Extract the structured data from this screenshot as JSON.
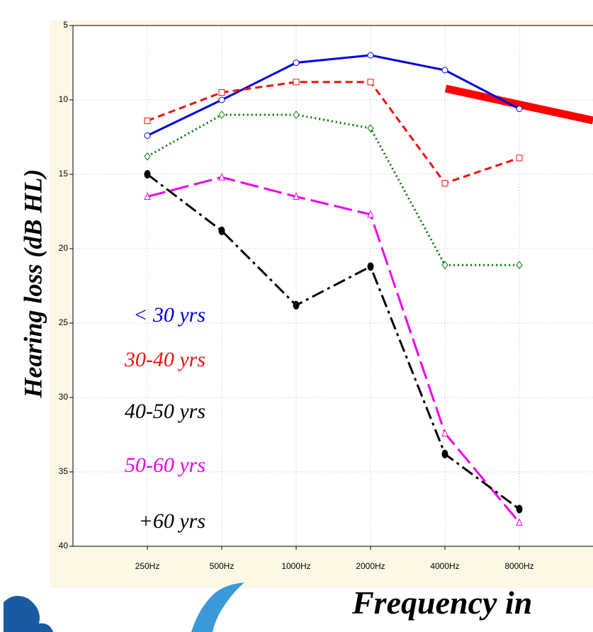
{
  "chart_data": {
    "type": "line",
    "y_axis_label": "Hearing loss (dB HL)",
    "x_axis_label": "Frequency in",
    "categories": [
      "250Hz",
      "500Hz",
      "1000Hz",
      "2000Hz",
      "4000Hz",
      "8000Hz"
    ],
    "ylim": [
      5,
      40
    ],
    "y_inverted": true,
    "yticks": [
      5,
      10,
      15,
      20,
      25,
      30,
      35,
      40
    ],
    "grid": true,
    "series": [
      {
        "name": "< 30 yrs",
        "color": "#0000dd",
        "legend_color": "#0000dd",
        "linestyle": "solid",
        "marker": "circle",
        "values": [
          12.4,
          10.0,
          7.5,
          7.0,
          8.0,
          10.6
        ]
      },
      {
        "name": "30-40 yrs",
        "color": "#ee1111",
        "legend_color": "#ee1111",
        "linestyle": "dashed",
        "marker": "square",
        "values": [
          11.4,
          9.5,
          8.8,
          8.8,
          15.6,
          13.9
        ]
      },
      {
        "name": "40-50 yrs",
        "color": "#007700",
        "legend_color": "#000000",
        "linestyle": "dotted",
        "marker": "diamond",
        "values": [
          13.8,
          11.0,
          11.0,
          11.9,
          21.1,
          21.1
        ]
      },
      {
        "name": "50-60 yrs",
        "color": "#ee00ee",
        "legend_color": "#ee00ee",
        "linestyle": "longdash",
        "marker": "triangle",
        "values": [
          16.5,
          15.2,
          16.5,
          17.7,
          32.4,
          38.4
        ]
      },
      {
        "name": "+60 yrs",
        "color": "#000000",
        "legend_color": "#000000",
        "linestyle": "dashdot",
        "marker": "dot",
        "values": [
          15.0,
          18.8,
          23.8,
          21.2,
          33.8,
          37.5
        ]
      }
    ]
  }
}
